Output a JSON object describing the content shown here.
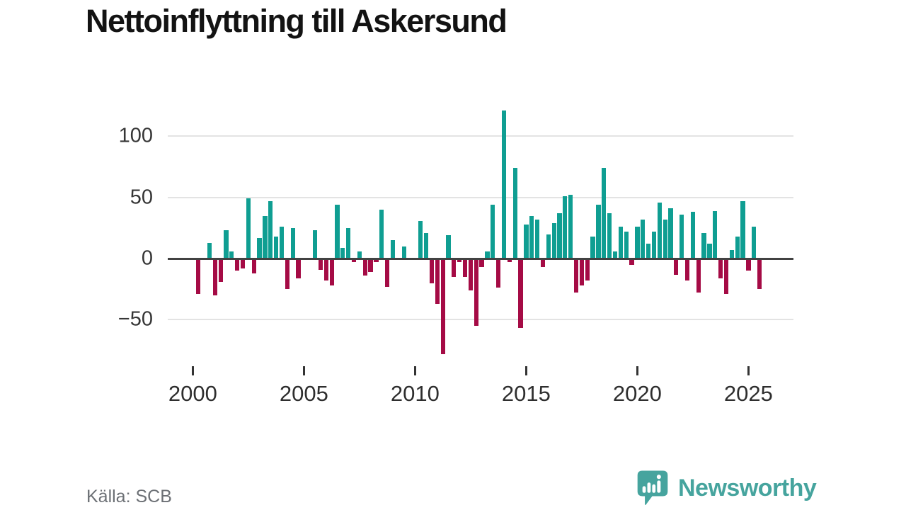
{
  "title": "Nettoinflyttning till Askersund",
  "source": "Källa: SCB",
  "brand": {
    "name": "Newsworthy"
  },
  "colors": {
    "positive": "#0f9e92",
    "negative": "#a50b45",
    "brand_teal": "#46a49e",
    "grid": "#e3e3e3",
    "zero_line": "#424242",
    "axis_text": "#363636",
    "source_text": "#6c7075",
    "title_text": "#131313"
  },
  "chart_data": {
    "type": "bar",
    "title": "Nettoinflyttning till Askersund",
    "x_start": "2000-Q1",
    "x_frequency": "quarterly",
    "x_tick_labels": [
      "2000",
      "2005",
      "2010",
      "2015",
      "2020",
      "2025"
    ],
    "quarters_per_tick": 20,
    "y_ticks": [
      100,
      50,
      0,
      -50
    ],
    "y_tick_labels": [
      "100",
      "50",
      "0",
      "−50"
    ],
    "ylim": [
      -85,
      125
    ],
    "grid": "horizontal",
    "legend": "none",
    "series": [
      {
        "name": "Nettoinflyttning",
        "values": [
          0,
          -29,
          0,
          13,
          -30,
          -19,
          23,
          6,
          -10,
          -8,
          49,
          -12,
          17,
          35,
          47,
          18,
          26,
          -25,
          25,
          -16,
          0,
          0,
          23,
          -9,
          -18,
          -22,
          44,
          9,
          25,
          -3,
          6,
          -14,
          -11,
          -3,
          40,
          -23,
          15,
          0,
          10,
          0,
          0,
          31,
          21,
          -20,
          -37,
          -78,
          19,
          -15,
          -3,
          -15,
          -26,
          -55,
          -7,
          6,
          44,
          -24,
          121,
          -3,
          74,
          -57,
          28,
          35,
          32,
          -7,
          20,
          29,
          37,
          51,
          52,
          -28,
          -22,
          -18,
          18,
          44,
          74,
          37,
          6,
          26,
          22,
          -5,
          26,
          32,
          12,
          22,
          46,
          32,
          41,
          -13,
          36,
          -18,
          38,
          -28,
          21,
          12,
          39,
          -16,
          -29,
          7,
          18,
          47,
          -10,
          26,
          -25
        ]
      }
    ]
  }
}
